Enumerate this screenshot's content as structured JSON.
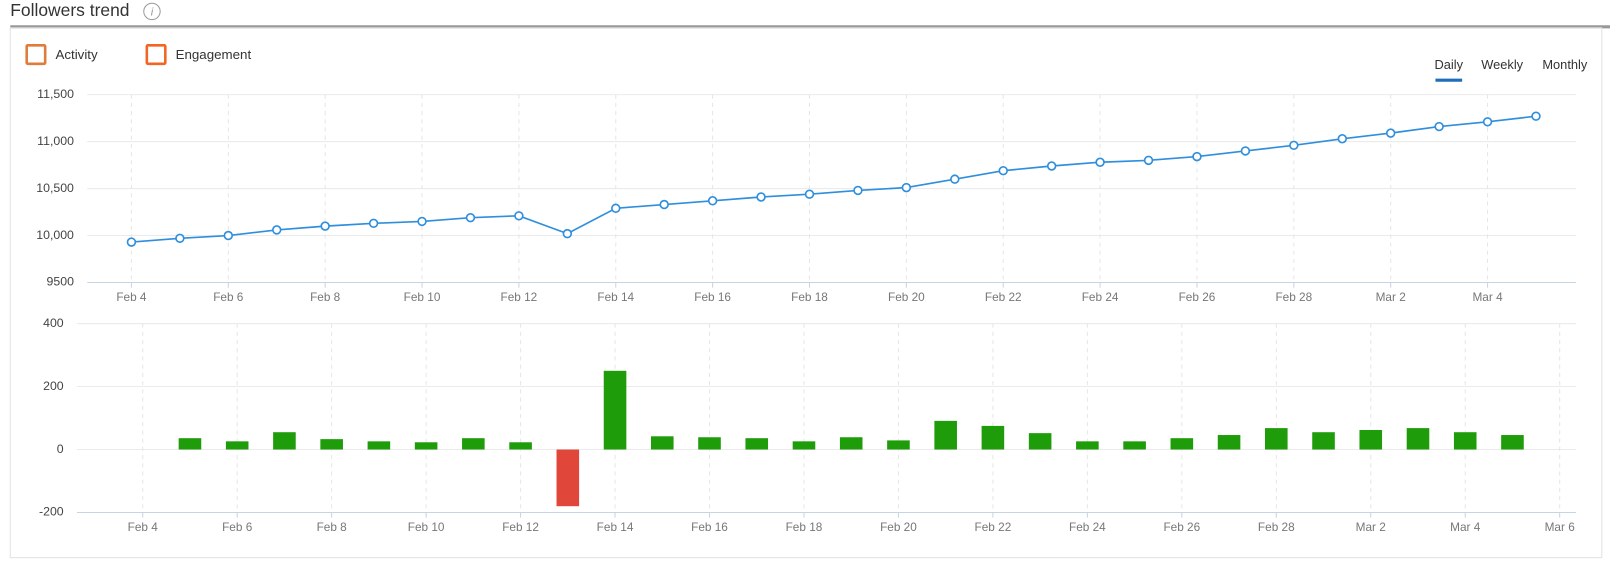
{
  "header": {
    "title": "Followers trend"
  },
  "toggles": [
    {
      "label": "Activity",
      "color": "#e07b39"
    },
    {
      "label": "Engagement",
      "color": "#f26522"
    }
  ],
  "tabs": {
    "labels": [
      "Daily",
      "Weekly",
      "Monthly"
    ],
    "active": 0,
    "color": "#1e6fb8"
  },
  "chart_data": [
    {
      "type": "line",
      "categories": [
        "Feb 4",
        null,
        "Feb 6",
        null,
        "Feb 8",
        null,
        "Feb 10",
        null,
        "Feb 12",
        null,
        "Feb 14",
        null,
        "Feb 16",
        null,
        "Feb 18",
        null,
        "Feb 20",
        null,
        "Feb 22",
        null,
        "Feb 24",
        null,
        "Feb 26",
        null,
        "Feb 28",
        null,
        "Mar 2",
        null,
        "Mar 4",
        null
      ],
      "values": [
        9930,
        9970,
        10000,
        10060,
        10100,
        10130,
        10150,
        10190,
        10210,
        10020,
        10290,
        10330,
        10370,
        10410,
        10440,
        10480,
        10510,
        10600,
        10690,
        10740,
        10780,
        10800,
        10840,
        10900,
        10960,
        11030,
        11090,
        11160,
        11210,
        11270
      ],
      "color": "#2f8fdd",
      "ylim": [
        9500,
        11500
      ],
      "yticks": [
        9500,
        {
          "value": 10000,
          "label": "10,000"
        },
        {
          "value": 10500,
          "label": "10,500"
        },
        {
          "value": 11000,
          "label": "11,000"
        },
        {
          "value": 11500,
          "label": "11,500"
        }
      ],
      "grid": true
    },
    {
      "type": "bar",
      "categories": [
        "Feb 4",
        null,
        "Feb 6",
        null,
        "Feb 8",
        null,
        "Feb 10",
        null,
        "Feb 12",
        null,
        "Feb 14",
        null,
        "Feb 16",
        null,
        "Feb 18",
        null,
        "Feb 20",
        null,
        "Feb 22",
        null,
        "Feb 24",
        null,
        "Feb 26",
        null,
        "Feb 28",
        null,
        "Mar 2",
        null,
        "Mar 4",
        null,
        "Mar 6"
      ],
      "values": [
        null,
        36,
        26,
        55,
        33,
        26,
        23,
        36,
        23,
        -180,
        250,
        42,
        39,
        36,
        26,
        39,
        29,
        91,
        75,
        52,
        26,
        26,
        36,
        46,
        68,
        55,
        62,
        68,
        55,
        46,
        null
      ],
      "color": "#1e9c0a",
      "negative_color": "#e0463a",
      "ylim": [
        -200,
        400
      ],
      "yticks": [
        -200,
        0,
        200,
        400
      ],
      "grid": true
    }
  ]
}
